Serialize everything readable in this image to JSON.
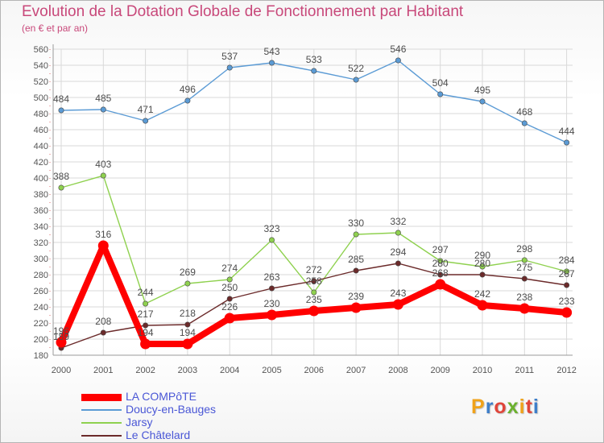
{
  "page": {
    "title": "Evolution de la Dotation Globale de Fonctionnement par Habitant",
    "subtitle": "(en € et par an)",
    "brand_text": "Proxiti",
    "brand_colors": [
      "#f0a21a",
      "#3d7ec9",
      "#e0453a",
      "#6bb12f",
      "#f0a21a",
      "#e0453a",
      "#3d7ec9"
    ]
  },
  "chart_data": {
    "type": "line",
    "title": "Evolution de la Dotation Globale de Fonctionnement par Habitant",
    "subtitle": "(en € et par an)",
    "x": [
      "2000",
      "2001",
      "2002",
      "2003",
      "2004",
      "2005",
      "2006",
      "2007",
      "2008",
      "2009",
      "2010",
      "2011",
      "2012"
    ],
    "ylim": [
      180,
      560
    ],
    "ytick_step": 20,
    "grid": true,
    "legend_position": "bottom-left",
    "series": [
      {
        "name": "LA COMPôTE",
        "color": "#ff0000",
        "values": [
          196,
          316,
          194,
          194,
          226,
          230,
          235,
          239,
          243,
          268,
          242,
          238,
          233
        ]
      },
      {
        "name": "Doucy-en-Bauges",
        "color": "#5b9bd5",
        "values": [
          484,
          485,
          471,
          496,
          537,
          543,
          533,
          522,
          546,
          504,
          495,
          468,
          444
        ]
      },
      {
        "name": "Jarsy",
        "color": "#8fd14f",
        "values": [
          388,
          403,
          244,
          269,
          274,
          323,
          258,
          330,
          332,
          297,
          290,
          298,
          284
        ]
      },
      {
        "name": "Le Châtelard",
        "color": "#6b2a2a",
        "values": [
          189,
          208,
          217,
          218,
          250,
          263,
          272,
          285,
          294,
          280,
          280,
          275,
          267
        ]
      }
    ]
  }
}
